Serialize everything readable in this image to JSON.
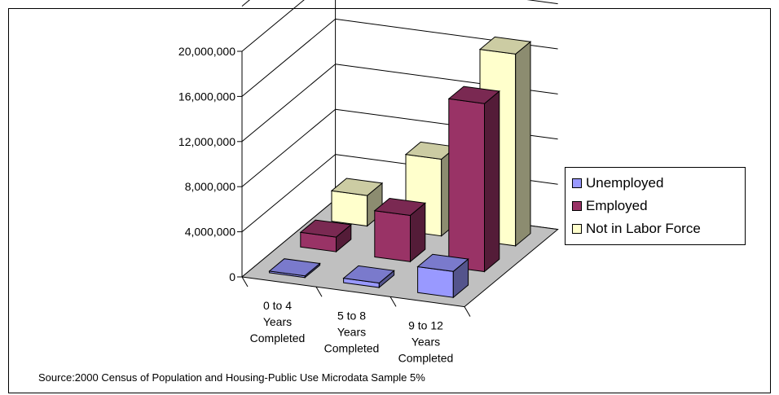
{
  "chart_data": {
    "type": "bar",
    "categories": [
      [
        "0 to 4",
        "Years",
        "Completed"
      ],
      [
        "5 to 8",
        "Years",
        "Completed"
      ],
      [
        "9 to 12",
        "Years",
        "Completed"
      ]
    ],
    "series": [
      {
        "name": "Unemployed",
        "values": [
          150000,
          400000,
          2300000
        ],
        "color": "#9999ff"
      },
      {
        "name": "Employed",
        "values": [
          1300000,
          4100000,
          14900000
        ],
        "color": "#993366"
      },
      {
        "name": "Not in Labor Force",
        "values": [
          2700000,
          6800000,
          17000000
        ],
        "color": "#ffffcc"
      }
    ],
    "yticks": [
      "0",
      "4,000,000",
      "8,000,000",
      "12,000,000",
      "16,000,000",
      "20,000,000"
    ],
    "ylim": [
      0,
      24000000
    ],
    "style": "3d-bar",
    "legend": "right",
    "grid": true
  },
  "source": "Source:2000 Census of Population and Housing-Public Use Microdata Sample 5%"
}
